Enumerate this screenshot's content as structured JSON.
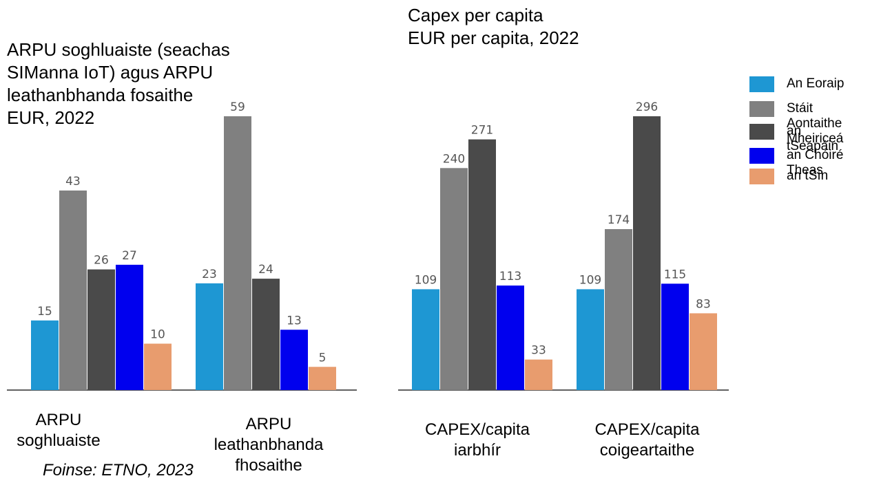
{
  "chart_data": [
    {
      "type": "bar",
      "title": "ARPU soghluaiste (seachas SIManna IoT) agus ARPU leathanbhanda fosaithe\nEUR, 2022",
      "categories": [
        "ARPU\nsoghluaiste",
        "ARPU\nleathanbhanda\nfhosaithe"
      ],
      "series": [
        {
          "name": "An Eoraip",
          "values": [
            15,
            23
          ]
        },
        {
          "name": "Stáit Aontaithe Mheiriceá",
          "values": [
            43,
            59
          ]
        },
        {
          "name": "an tSeapáin",
          "values": [
            26,
            24
          ]
        },
        {
          "name": "an Chóiré Theas",
          "values": [
            27,
            13
          ]
        },
        {
          "name": "an tSín",
          "values": [
            10,
            5
          ]
        }
      ],
      "xlabel": "",
      "ylabel": "",
      "ylim": [
        0,
        62
      ],
      "grid": false
    },
    {
      "type": "bar",
      "title": "Capex per capita\nEUR per capita, 2022",
      "categories": [
        "CAPEX/capita\niarbhír",
        "CAPEX/capita\ncoigeartaithe"
      ],
      "series": [
        {
          "name": "An Eoraip",
          "values": [
            109,
            109
          ]
        },
        {
          "name": "Stáit Aontaithe Mheiriceá",
          "values": [
            240,
            174
          ]
        },
        {
          "name": "an tSeapáin",
          "values": [
            271,
            296
          ]
        },
        {
          "name": "an Chóiré Theas",
          "values": [
            113,
            115
          ]
        },
        {
          "name": "an tSín",
          "values": [
            33,
            83
          ]
        }
      ],
      "xlabel": "",
      "ylabel": "",
      "ylim": [
        0,
        310
      ],
      "grid": false
    }
  ],
  "legend": {
    "placement": "right",
    "items": [
      {
        "label": "An Eoraip",
        "color": "#1e97d3"
      },
      {
        "label": "Stáit Aontaithe Mheiriceá",
        "color": "#808080"
      },
      {
        "label": "an tSeapáin",
        "color": "#4a4a4a"
      },
      {
        "label": "an Chóiré Theas",
        "color": "#0000ee"
      },
      {
        "label": "an tSín",
        "color": "#e89c6e"
      }
    ]
  },
  "source": "Foinse: ETNO, 2023",
  "colors": {
    "value_label": "#555555",
    "axis": "#000000"
  }
}
